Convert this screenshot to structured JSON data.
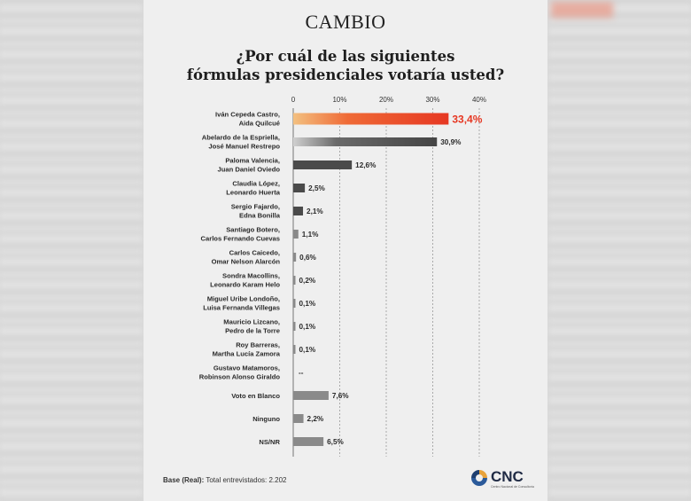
{
  "brand": {
    "logo": "CAMBIO",
    "pollster": "CNC",
    "pollster_sub": "Centro Nacional de Consultoría",
    "pollster_colors": [
      "#e8a33b",
      "#2b5a9a",
      "#1e3f70"
    ]
  },
  "question": {
    "line1": "¿Por cuál de las siguientes",
    "line2": "fórmulas presidenciales votaría usted?"
  },
  "footer": {
    "base_label": "Base (Real):",
    "base_text": "Total entrevistados: 2.202"
  },
  "chart_data": {
    "type": "bar",
    "orientation": "horizontal",
    "title": "¿Por cuál de las siguientes fórmulas presidenciales votaría usted?",
    "xlim": [
      0,
      40
    ],
    "xticks": [
      "0",
      "10%",
      "20%",
      "30%",
      "40%"
    ],
    "grid": true,
    "colors": {
      "highlight": "#e63722",
      "dark": "#4a4a4a",
      "light": "#8a8a8a",
      "tick": "#333333"
    },
    "categories": [
      [
        "Iván Cepeda Castro,",
        "Aida Quilcué"
      ],
      [
        "Abelardo de la Espriella,",
        "José Manuel Restrepo"
      ],
      [
        "Paloma Valencia,",
        "Juan Daniel Oviedo"
      ],
      [
        "Claudia López,",
        "Leonardo Huerta"
      ],
      [
        "Sergio Fajardo,",
        "Edna Bonilla"
      ],
      [
        "Santiago Botero,",
        "Carlos Fernando Cuevas"
      ],
      [
        "Carlos Caicedo,",
        "Omar Nelson Alarcón"
      ],
      [
        "Sondra Macollins,",
        "Leonardo Karam Helo"
      ],
      [
        "Miguel Uribe Londoño,",
        "Luisa Fernanda Villegas"
      ],
      [
        "Mauricio Lizcano,",
        "Pedro de la Torre"
      ],
      [
        "Roy Barreras,",
        "Martha Lucía Zamora"
      ],
      [
        "Gustavo Matamoros,",
        "Robinson Alonso Giraldo"
      ],
      [
        "Voto en Blanco"
      ],
      [
        "Ninguno"
      ],
      [
        "NS/NR"
      ]
    ],
    "values": [
      33.4,
      30.9,
      12.6,
      2.5,
      2.1,
      1.1,
      0.6,
      0.2,
      0.1,
      0.1,
      0.1,
      null,
      7.6,
      2.2,
      6.5
    ],
    "data_labels": [
      "33,4%",
      "30,9%",
      "12,6%",
      "2,5%",
      "2,1%",
      "1,1%",
      "0,6%",
      "0,2%",
      "0,1%",
      "0,1%",
      "0,1%",
      "--",
      "7,6%",
      "2,2%",
      "6,5%"
    ],
    "bar_styles": [
      "highlight",
      "dark",
      "dark",
      "dark",
      "dark",
      "light",
      "light",
      "light",
      "light",
      "light",
      "light",
      "light",
      "light",
      "light",
      "light"
    ]
  }
}
